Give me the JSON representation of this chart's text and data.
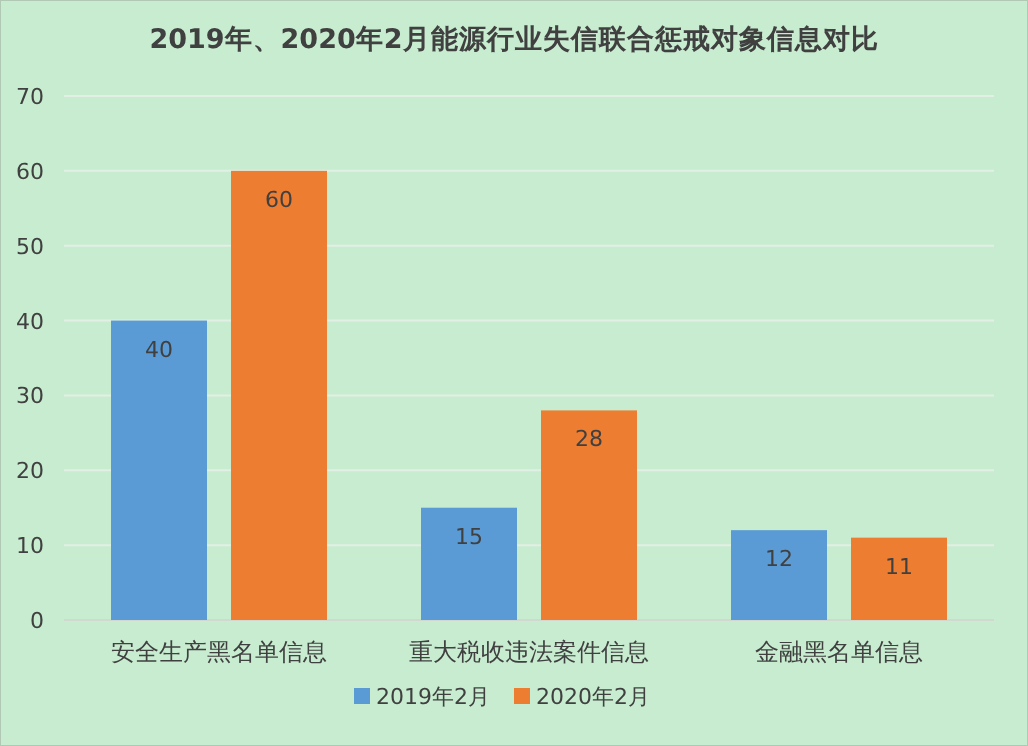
{
  "chart_data": {
    "type": "bar",
    "title": "2019年、2020年2月能源行业失信联合惩戒对象信息对比",
    "categories": [
      "安全生产黑名单信息",
      "重大税收违法案件信息",
      "金融黑名单信息"
    ],
    "series": [
      {
        "name": "2019年2月",
        "color": "#5b9bd5",
        "values": [
          40,
          15,
          12
        ]
      },
      {
        "name": "2020年2月",
        "color": "#ed7d31",
        "values": [
          60,
          28,
          11
        ]
      }
    ],
    "ylim": [
      0,
      70
    ],
    "yticks": [
      0,
      10,
      20,
      30,
      40,
      50,
      60,
      70
    ],
    "grid": "y",
    "legend": "bottom",
    "data_labels": true
  }
}
